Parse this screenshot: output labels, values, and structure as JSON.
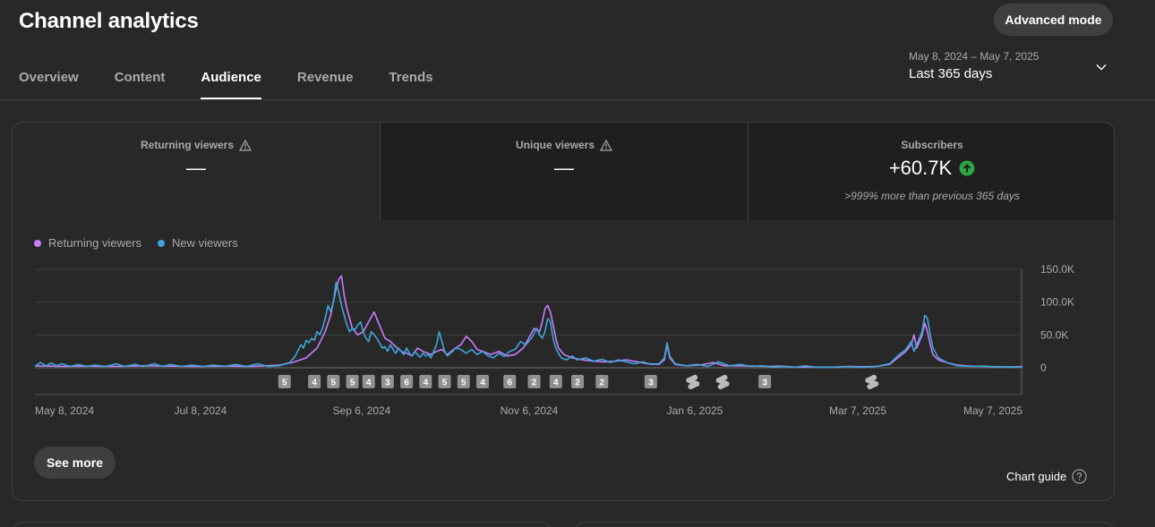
{
  "header": {
    "title": "Channel analytics",
    "advanced_mode_label": "Advanced mode"
  },
  "tabs": [
    {
      "label": "Overview",
      "active": false
    },
    {
      "label": "Content",
      "active": false
    },
    {
      "label": "Audience",
      "active": true
    },
    {
      "label": "Revenue",
      "active": false
    },
    {
      "label": "Trends",
      "active": false
    }
  ],
  "date_range": {
    "range_text": "May 8, 2024 – May 7, 2025",
    "period_label": "Last 365 days",
    "icon": "chevron-down-icon"
  },
  "metrics": [
    {
      "label": "Returning viewers",
      "value": "—",
      "icon": "warning-icon"
    },
    {
      "label": "Unique viewers",
      "value": "—",
      "icon": "warning-icon"
    },
    {
      "label": "Subscribers",
      "value": "+60.7K",
      "icon": "arrow-up-circle-icon",
      "note": ">999% more than previous 365 days"
    }
  ],
  "colors": {
    "returning": "#c77dff",
    "new": "#3ea6d8",
    "up_green": "#2ba640"
  },
  "buttons": {
    "see_more": "See more",
    "chart_guide": "Chart guide"
  },
  "chart_data": {
    "type": "line",
    "legend": [
      "Returning viewers",
      "New viewers"
    ],
    "legend_placement": "top-left",
    "x_tick_labels": [
      "May 8, 2024",
      "Jul 8, 2024",
      "Sep 6, 2024",
      "Nov 6, 2024",
      "Jan 6, 2025",
      "Mar 7, 2025",
      "May 7, 2025"
    ],
    "y_tick_labels": [
      "150.0K",
      "100.0K",
      "50.0K",
      "0"
    ],
    "ylim": [
      0,
      150000
    ],
    "xlim_day": [
      0,
      364
    ],
    "grid": true,
    "series": [
      {
        "name": "Returning viewers",
        "color": "#c77dff",
        "points": [
          [
            0,
            3000
          ],
          [
            10,
            2000
          ],
          [
            20,
            2500
          ],
          [
            30,
            2000
          ],
          [
            40,
            3000
          ],
          [
            50,
            2500
          ],
          [
            60,
            2000
          ],
          [
            70,
            2500
          ],
          [
            80,
            2000
          ],
          [
            90,
            4000
          ],
          [
            95,
            8000
          ],
          [
            100,
            15000
          ],
          [
            104,
            30000
          ],
          [
            107,
            55000
          ],
          [
            109,
            80000
          ],
          [
            110,
            100000
          ],
          [
            111,
            120000
          ],
          [
            112,
            135000
          ],
          [
            113,
            140000
          ],
          [
            114,
            110000
          ],
          [
            115,
            90000
          ],
          [
            117,
            60000
          ],
          [
            119,
            50000
          ],
          [
            121,
            55000
          ],
          [
            123,
            70000
          ],
          [
            125,
            85000
          ],
          [
            127,
            65000
          ],
          [
            129,
            45000
          ],
          [
            131,
            40000
          ],
          [
            133,
            32000
          ],
          [
            135,
            25000
          ],
          [
            137,
            22000
          ],
          [
            139,
            18000
          ],
          [
            141,
            30000
          ],
          [
            143,
            25000
          ],
          [
            146,
            20000
          ],
          [
            148,
            25000
          ],
          [
            150,
            28000
          ],
          [
            152,
            20000
          ],
          [
            155,
            30000
          ],
          [
            157,
            35000
          ],
          [
            159,
            48000
          ],
          [
            161,
            40000
          ],
          [
            163,
            28000
          ],
          [
            165,
            25000
          ],
          [
            168,
            20000
          ],
          [
            171,
            25000
          ],
          [
            174,
            18000
          ],
          [
            177,
            20000
          ],
          [
            180,
            30000
          ],
          [
            182,
            45000
          ],
          [
            184,
            60000
          ],
          [
            186,
            55000
          ],
          [
            187,
            70000
          ],
          [
            188,
            90000
          ],
          [
            189,
            95000
          ],
          [
            190,
            85000
          ],
          [
            191,
            65000
          ],
          [
            192,
            45000
          ],
          [
            193,
            30000
          ],
          [
            195,
            20000
          ],
          [
            198,
            15000
          ],
          [
            202,
            12000
          ],
          [
            206,
            10000
          ],
          [
            210,
            9000
          ],
          [
            214,
            10000
          ],
          [
            218,
            12000
          ],
          [
            222,
            9000
          ],
          [
            226,
            6000
          ],
          [
            230,
            5000
          ],
          [
            232,
            12000
          ],
          [
            233,
            35000
          ],
          [
            234,
            15000
          ],
          [
            236,
            5000
          ],
          [
            240,
            3000
          ],
          [
            245,
            4000
          ],
          [
            250,
            8000
          ],
          [
            254,
            3000
          ],
          [
            260,
            3000
          ],
          [
            265,
            2500
          ],
          [
            270,
            2000
          ],
          [
            275,
            2500
          ],
          [
            280,
            1000
          ],
          [
            285,
            1500
          ],
          [
            290,
            500
          ],
          [
            295,
            1000
          ],
          [
            300,
            2000
          ],
          [
            305,
            1500
          ],
          [
            310,
            2000
          ],
          [
            315,
            5000
          ],
          [
            318,
            15000
          ],
          [
            321,
            25000
          ],
          [
            323,
            35000
          ],
          [
            324,
            50000
          ],
          [
            325,
            30000
          ],
          [
            326,
            40000
          ],
          [
            327,
            50000
          ],
          [
            328,
            68000
          ],
          [
            329,
            55000
          ],
          [
            330,
            35000
          ],
          [
            331,
            20000
          ],
          [
            333,
            12000
          ],
          [
            336,
            8000
          ],
          [
            340,
            4000
          ],
          [
            345,
            2500
          ],
          [
            350,
            2000
          ],
          [
            355,
            1500
          ],
          [
            360,
            1000
          ],
          [
            364,
            2000
          ]
        ]
      },
      {
        "name": "New viewers",
        "color": "#3ea6d8",
        "points": [
          [
            0,
            2000
          ],
          [
            2,
            8000
          ],
          [
            4,
            3000
          ],
          [
            6,
            7000
          ],
          [
            8,
            3000
          ],
          [
            10,
            6000
          ],
          [
            13,
            2000
          ],
          [
            16,
            5000
          ],
          [
            19,
            2000
          ],
          [
            22,
            4000
          ],
          [
            26,
            2000
          ],
          [
            30,
            6000
          ],
          [
            33,
            2000
          ],
          [
            37,
            5000
          ],
          [
            40,
            2000
          ],
          [
            44,
            6000
          ],
          [
            47,
            2000
          ],
          [
            50,
            5000
          ],
          [
            54,
            2000
          ],
          [
            58,
            4000
          ],
          [
            62,
            2000
          ],
          [
            66,
            4000
          ],
          [
            70,
            2000
          ],
          [
            74,
            5000
          ],
          [
            78,
            2000
          ],
          [
            82,
            6000
          ],
          [
            86,
            2000
          ],
          [
            90,
            3000
          ],
          [
            94,
            8000
          ],
          [
            96,
            18000
          ],
          [
            98,
            35000
          ],
          [
            99,
            30000
          ],
          [
            100,
            42000
          ],
          [
            101,
            38000
          ],
          [
            102,
            45000
          ],
          [
            103,
            42000
          ],
          [
            104,
            55000
          ],
          [
            105,
            50000
          ],
          [
            106,
            60000
          ],
          [
            107,
            75000
          ],
          [
            108,
            95000
          ],
          [
            109,
            85000
          ],
          [
            110,
            100000
          ],
          [
            111,
            130000
          ],
          [
            112,
            115000
          ],
          [
            113,
            95000
          ],
          [
            114,
            80000
          ],
          [
            115,
            65000
          ],
          [
            116,
            55000
          ],
          [
            117,
            60000
          ],
          [
            118,
            58000
          ],
          [
            119,
            65000
          ],
          [
            120,
            70000
          ],
          [
            121,
            55000
          ],
          [
            122,
            45000
          ],
          [
            123,
            40000
          ],
          [
            124,
            55000
          ],
          [
            125,
            50000
          ],
          [
            126,
            45000
          ],
          [
            127,
            38000
          ],
          [
            128,
            30000
          ],
          [
            129,
            32000
          ],
          [
            130,
            25000
          ],
          [
            131,
            35000
          ],
          [
            132,
            28000
          ],
          [
            133,
            22000
          ],
          [
            134,
            30000
          ],
          [
            135,
            25000
          ],
          [
            136,
            20000
          ],
          [
            137,
            30000
          ],
          [
            138,
            22000
          ],
          [
            139,
            18000
          ],
          [
            140,
            25000
          ],
          [
            141,
            20000
          ],
          [
            142,
            16000
          ],
          [
            143,
            22000
          ],
          [
            144,
            18000
          ],
          [
            145,
            20000
          ],
          [
            146,
            15000
          ],
          [
            147,
            25000
          ],
          [
            148,
            35000
          ],
          [
            149,
            55000
          ],
          [
            150,
            40000
          ],
          [
            151,
            25000
          ],
          [
            152,
            18000
          ],
          [
            153,
            22000
          ],
          [
            154,
            25000
          ],
          [
            155,
            30000
          ],
          [
            157,
            28000
          ],
          [
            159,
            22000
          ],
          [
            161,
            28000
          ],
          [
            163,
            20000
          ],
          [
            165,
            25000
          ],
          [
            167,
            18000
          ],
          [
            169,
            15000
          ],
          [
            171,
            22000
          ],
          [
            173,
            17000
          ],
          [
            175,
            25000
          ],
          [
            177,
            28000
          ],
          [
            179,
            40000
          ],
          [
            181,
            35000
          ],
          [
            183,
            45000
          ],
          [
            185,
            60000
          ],
          [
            186,
            50000
          ],
          [
            187,
            45000
          ],
          [
            188,
            55000
          ],
          [
            189,
            75000
          ],
          [
            190,
            70000
          ],
          [
            191,
            45000
          ],
          [
            192,
            30000
          ],
          [
            193,
            22000
          ],
          [
            194,
            15000
          ],
          [
            196,
            12000
          ],
          [
            198,
            18000
          ],
          [
            200,
            12000
          ],
          [
            203,
            15000
          ],
          [
            206,
            10000
          ],
          [
            209,
            13000
          ],
          [
            212,
            8000
          ],
          [
            215,
            12000
          ],
          [
            218,
            9000
          ],
          [
            221,
            6000
          ],
          [
            224,
            9000
          ],
          [
            227,
            5000
          ],
          [
            230,
            6000
          ],
          [
            232,
            15000
          ],
          [
            233,
            38000
          ],
          [
            234,
            18000
          ],
          [
            236,
            6000
          ],
          [
            240,
            3000
          ],
          [
            244,
            5000
          ],
          [
            248,
            2000
          ],
          [
            252,
            9000
          ],
          [
            256,
            3000
          ],
          [
            260,
            5000
          ],
          [
            264,
            2000
          ],
          [
            268,
            3000
          ],
          [
            272,
            1000
          ],
          [
            276,
            2000
          ],
          [
            280,
            500
          ],
          [
            284,
            3000
          ],
          [
            288,
            500
          ],
          [
            292,
            1000
          ],
          [
            296,
            500
          ],
          [
            300,
            2000
          ],
          [
            305,
            500
          ],
          [
            310,
            2000
          ],
          [
            315,
            6000
          ],
          [
            318,
            18000
          ],
          [
            321,
            28000
          ],
          [
            323,
            40000
          ],
          [
            324,
            25000
          ],
          [
            325,
            35000
          ],
          [
            326,
            45000
          ],
          [
            327,
            55000
          ],
          [
            328,
            80000
          ],
          [
            329,
            75000
          ],
          [
            330,
            50000
          ],
          [
            331,
            30000
          ],
          [
            333,
            15000
          ],
          [
            336,
            8000
          ],
          [
            340,
            3000
          ],
          [
            345,
            2000
          ],
          [
            350,
            2500
          ],
          [
            355,
            1000
          ],
          [
            360,
            1500
          ],
          [
            364,
            1000
          ]
        ]
      }
    ],
    "video_markers": [
      {
        "day": 92,
        "label": "5"
      },
      {
        "day": 103,
        "label": "4"
      },
      {
        "day": 110,
        "label": "5"
      },
      {
        "day": 117,
        "label": "5"
      },
      {
        "day": 123,
        "label": "4"
      },
      {
        "day": 130,
        "label": "3"
      },
      {
        "day": 137,
        "label": "6"
      },
      {
        "day": 144,
        "label": "4"
      },
      {
        "day": 151,
        "label": "5"
      },
      {
        "day": 158,
        "label": "5"
      },
      {
        "day": 165,
        "label": "4"
      },
      {
        "day": 175,
        "label": "6"
      },
      {
        "day": 184,
        "label": "2"
      },
      {
        "day": 192,
        "label": "4"
      },
      {
        "day": 200,
        "label": "2"
      },
      {
        "day": 209,
        "label": "2"
      },
      {
        "day": 227,
        "label": "3"
      },
      {
        "day": 242,
        "label": "shorts"
      },
      {
        "day": 253,
        "label": "shorts"
      },
      {
        "day": 269,
        "label": "3"
      },
      {
        "day": 308,
        "label": "shorts"
      }
    ]
  }
}
